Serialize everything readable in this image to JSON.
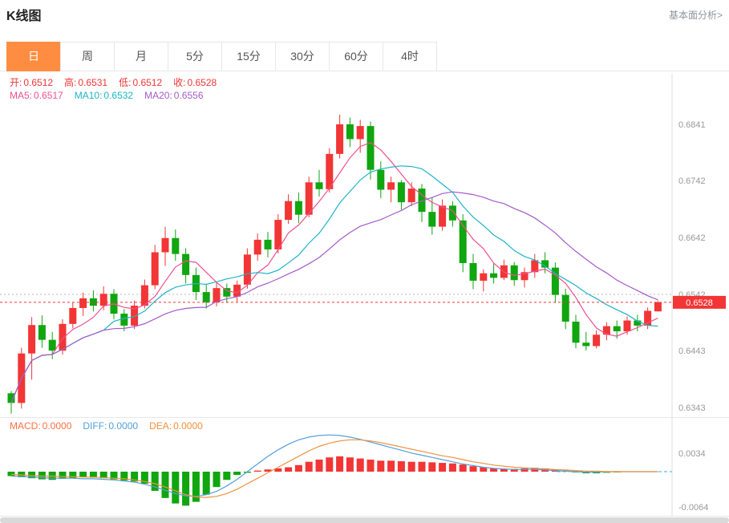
{
  "header": {
    "title": "K线图",
    "link": "基本面分析>"
  },
  "tabs": {
    "items": [
      "日",
      "周",
      "月",
      "5分",
      "15分",
      "30分",
      "60分",
      "4时"
    ],
    "active_index": 0
  },
  "ohlc_legend": [
    {
      "label": "开:",
      "value": "0.6512",
      "color": "#f23535"
    },
    {
      "label": "高:",
      "value": "0.6531",
      "color": "#f23535"
    },
    {
      "label": "低:",
      "value": "0.6512",
      "color": "#f23535"
    },
    {
      "label": "收:",
      "value": "0.6528",
      "color": "#f23535"
    }
  ],
  "ma_legend": [
    {
      "label": "MA5:",
      "value": "0.6517",
      "color": "#f0508e"
    },
    {
      "label": "MA10:",
      "value": "0.6532",
      "color": "#1fb4c9"
    },
    {
      "label": "MA20:",
      "value": "0.6556",
      "color": "#a45bc8"
    }
  ],
  "macd_legend": [
    {
      "label": "MACD:",
      "value": "0.0000",
      "color": "#ff7043"
    },
    {
      "label": "DIFF:",
      "value": "0.0000",
      "color": "#55a0dc"
    },
    {
      "label": "DEA:",
      "value": "0.0000",
      "color": "#f0913c"
    }
  ],
  "colors": {
    "up": "#f23535",
    "down": "#0fa60f",
    "ma5": "#f0508e",
    "ma10": "#1fb4c9",
    "ma20": "#a45bc8",
    "diff_line": "#55a0dc",
    "dea_line": "#f0913c",
    "price_line": "#f23535",
    "badge_bg": "#f23535",
    "badge_text": "#ffffff",
    "axis_text": "#999999",
    "grid_dotted": "#bbbbbb",
    "zero_dashed": "#2bb9c9",
    "tab_active_bg": "#ff8d41",
    "tab_active_text": "#ffffff"
  },
  "chart_data": {
    "type": "candlestick",
    "title": "K线图",
    "period": "日",
    "legend_last": {
      "open": 0.6512,
      "high": 0.6531,
      "low": 0.6512,
      "close": 0.6528
    },
    "y_axis": {
      "ticks": [
        0.6841,
        0.6742,
        0.6642,
        0.6542,
        0.6443,
        0.6343
      ],
      "range": [
        0.632,
        0.687
      ]
    },
    "current_price": 0.6528,
    "grid_price_line": 0.6542,
    "ma_windows": [
      5,
      10,
      20
    ],
    "candles": [
      [
        0.6368,
        0.6372,
        0.6332,
        0.6351
      ],
      [
        0.6351,
        0.6448,
        0.6341,
        0.6438
      ],
      [
        0.6438,
        0.6502,
        0.6392,
        0.6488
      ],
      [
        0.6488,
        0.6505,
        0.6448,
        0.6462
      ],
      [
        0.6462,
        0.6476,
        0.6428,
        0.6443
      ],
      [
        0.6443,
        0.6498,
        0.6436,
        0.649
      ],
      [
        0.649,
        0.6528,
        0.6482,
        0.6518
      ],
      [
        0.6518,
        0.6545,
        0.6504,
        0.6535
      ],
      [
        0.6535,
        0.6549,
        0.6512,
        0.6522
      ],
      [
        0.6522,
        0.6556,
        0.6514,
        0.6543
      ],
      [
        0.6543,
        0.6551,
        0.6498,
        0.6508
      ],
      [
        0.6508,
        0.6516,
        0.6477,
        0.6487
      ],
      [
        0.6487,
        0.6531,
        0.6481,
        0.6522
      ],
      [
        0.6522,
        0.6568,
        0.6517,
        0.6558
      ],
      [
        0.6558,
        0.6629,
        0.6551,
        0.6616
      ],
      [
        0.6616,
        0.6661,
        0.6592,
        0.6641
      ],
      [
        0.6641,
        0.6656,
        0.6601,
        0.6613
      ],
      [
        0.6613,
        0.6623,
        0.6561,
        0.6576
      ],
      [
        0.6576,
        0.6589,
        0.6532,
        0.6546
      ],
      [
        0.6546,
        0.6559,
        0.6517,
        0.6528
      ],
      [
        0.6528,
        0.6563,
        0.6521,
        0.6553
      ],
      [
        0.6553,
        0.6561,
        0.6527,
        0.6538
      ],
      [
        0.6538,
        0.6566,
        0.6529,
        0.6559
      ],
      [
        0.6559,
        0.6623,
        0.6552,
        0.6612
      ],
      [
        0.6612,
        0.6649,
        0.6601,
        0.6638
      ],
      [
        0.6638,
        0.6652,
        0.6607,
        0.6621
      ],
      [
        0.6621,
        0.6683,
        0.6614,
        0.6673
      ],
      [
        0.6673,
        0.6718,
        0.6666,
        0.6706
      ],
      [
        0.6706,
        0.6721,
        0.6667,
        0.6682
      ],
      [
        0.6682,
        0.6749,
        0.6677,
        0.6739
      ],
      [
        0.6739,
        0.6761,
        0.6714,
        0.6727
      ],
      [
        0.6727,
        0.6799,
        0.6721,
        0.6789
      ],
      [
        0.6789,
        0.6858,
        0.6781,
        0.6841
      ],
      [
        0.6841,
        0.6853,
        0.6801,
        0.6815
      ],
      [
        0.6815,
        0.6849,
        0.6791,
        0.6838
      ],
      [
        0.6838,
        0.6846,
        0.6744,
        0.6761
      ],
      [
        0.6761,
        0.6776,
        0.6711,
        0.6726
      ],
      [
        0.6726,
        0.6749,
        0.6704,
        0.6739
      ],
      [
        0.6739,
        0.6743,
        0.6691,
        0.6704
      ],
      [
        0.6704,
        0.6739,
        0.6697,
        0.6728
      ],
      [
        0.6728,
        0.6736,
        0.6669,
        0.6687
      ],
      [
        0.6687,
        0.6713,
        0.6647,
        0.6661
      ],
      [
        0.6661,
        0.6709,
        0.6654,
        0.6698
      ],
      [
        0.6698,
        0.6706,
        0.6661,
        0.6672
      ],
      [
        0.6672,
        0.6683,
        0.6581,
        0.6597
      ],
      [
        0.6597,
        0.6613,
        0.6551,
        0.6566
      ],
      [
        0.6566,
        0.6586,
        0.6547,
        0.6579
      ],
      [
        0.6579,
        0.6596,
        0.6561,
        0.6571
      ],
      [
        0.6571,
        0.6603,
        0.6567,
        0.6593
      ],
      [
        0.6593,
        0.6599,
        0.6557,
        0.6567
      ],
      [
        0.6567,
        0.6589,
        0.6554,
        0.6581
      ],
      [
        0.6581,
        0.6613,
        0.6571,
        0.6602
      ],
      [
        0.6602,
        0.6616,
        0.6579,
        0.6589
      ],
      [
        0.6589,
        0.6598,
        0.6527,
        0.6541
      ],
      [
        0.6541,
        0.6552,
        0.6481,
        0.6494
      ],
      [
        0.6494,
        0.6506,
        0.6447,
        0.6457
      ],
      [
        0.6457,
        0.6476,
        0.6443,
        0.6451
      ],
      [
        0.6451,
        0.6479,
        0.6447,
        0.6471
      ],
      [
        0.6471,
        0.6493,
        0.6461,
        0.6486
      ],
      [
        0.6486,
        0.6496,
        0.6464,
        0.6477
      ],
      [
        0.6477,
        0.6503,
        0.6471,
        0.6496
      ],
      [
        0.6496,
        0.6506,
        0.6477,
        0.6487
      ],
      [
        0.6487,
        0.6519,
        0.6481,
        0.6513
      ],
      [
        0.6512,
        0.6531,
        0.6512,
        0.6528
      ]
    ],
    "macd": {
      "y_ticks": [
        0.0034,
        -0.0064
      ],
      "legend": {
        "macd": 0.0,
        "diff": 0.0,
        "dea": 0.0
      },
      "hist": [
        -0.0008,
        -0.001,
        -0.0012,
        -0.0014,
        -0.0015,
        -0.0013,
        -0.0012,
        -0.001,
        -0.0011,
        -0.0012,
        -0.0014,
        -0.0016,
        -0.0018,
        -0.0022,
        -0.0035,
        -0.0048,
        -0.0058,
        -0.0062,
        -0.0055,
        -0.0042,
        -0.0028,
        -0.0015,
        -0.0006,
        -0.0002,
        0.0002,
        0.0004,
        0.0006,
        0.0008,
        0.0012,
        0.0018,
        0.0022,
        0.0026,
        0.0028,
        0.0026,
        0.0024,
        0.0022,
        0.002,
        0.002,
        0.0019,
        0.0018,
        0.0018,
        0.0017,
        0.0016,
        0.0015,
        0.0013,
        0.001,
        0.0008,
        0.0006,
        0.0005,
        0.0005,
        0.0006,
        0.0007,
        0.0006,
        0.0004,
        0.0002,
        -0.0001,
        -0.0003,
        -0.0003,
        -0.0002,
        -0.0001,
        0.0,
        0.0,
        0.0,
        0.0
      ],
      "diff": [
        -0.0008,
        -0.0009,
        -0.001,
        -0.0011,
        -0.0012,
        -0.0012,
        -0.0012,
        -0.0013,
        -0.0013,
        -0.0014,
        -0.0015,
        -0.0017,
        -0.0019,
        -0.0023,
        -0.0028,
        -0.0034,
        -0.004,
        -0.0044,
        -0.0045,
        -0.0042,
        -0.0036,
        -0.0026,
        -0.0014,
        0.0,
        0.0014,
        0.0028,
        0.004,
        0.005,
        0.0058,
        0.0063,
        0.0066,
        0.0067,
        0.0066,
        0.0063,
        0.0059,
        0.0054,
        0.0049,
        0.0044,
        0.0039,
        0.0034,
        0.003,
        0.0026,
        0.0022,
        0.0018,
        0.0014,
        0.0011,
        0.0008,
        0.0006,
        0.0005,
        0.0004,
        0.0004,
        0.0004,
        0.0003,
        0.0002,
        0.0001,
        0.0,
        -0.0001,
        -0.0001,
        0.0,
        0.0,
        0.0,
        0.0,
        0.0,
        0.0
      ],
      "dea": [
        -0.0005,
        -0.0006,
        -0.0007,
        -0.0008,
        -0.0008,
        -0.0009,
        -0.0009,
        -0.001,
        -0.001,
        -0.0011,
        -0.0012,
        -0.0013,
        -0.0015,
        -0.0018,
        -0.0022,
        -0.0028,
        -0.0035,
        -0.0042,
        -0.0046,
        -0.0047,
        -0.0045,
        -0.004,
        -0.0032,
        -0.0022,
        -0.0012,
        -0.0002,
        0.0008,
        0.0018,
        0.0028,
        0.0038,
        0.0046,
        0.0052,
        0.0056,
        0.0058,
        0.0058,
        0.0056,
        0.0053,
        0.0049,
        0.0045,
        0.0041,
        0.0037,
        0.0033,
        0.0029,
        0.0026,
        0.0022,
        0.0018,
        0.0015,
        0.0012,
        0.001,
        0.0008,
        0.0007,
        0.0006,
        0.0005,
        0.0004,
        0.0003,
        0.0002,
        0.0001,
        0.0001,
        0.0,
        0.0,
        0.0,
        0.0,
        0.0,
        0.0
      ]
    }
  }
}
